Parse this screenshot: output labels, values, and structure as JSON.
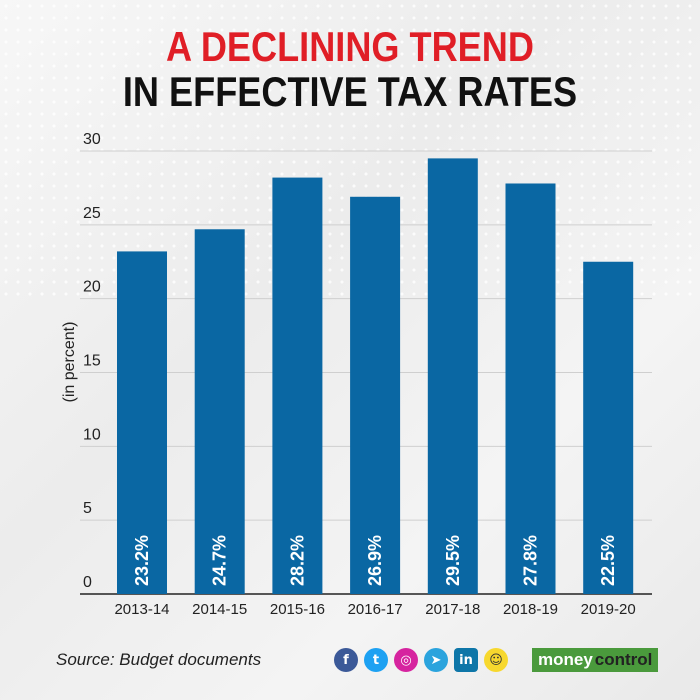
{
  "header": {
    "title_line1": "A DECLINING TREND",
    "title_line2": "IN EFFECTIVE TAX RATES"
  },
  "footer": {
    "source": "Source: Budget documents",
    "brand_part1": "money",
    "brand_part2": "control"
  },
  "colors": {
    "bar": "#0a67a3",
    "title_accent": "#e01e26",
    "grid": "#cfcfcf"
  },
  "chart_data": {
    "type": "bar",
    "title": "A DECLINING TREND IN EFFECTIVE TAX RATES",
    "xlabel": "",
    "ylabel": "(in percent)",
    "categories": [
      "2013-14",
      "2014-15",
      "2015-16",
      "2016-17",
      "2017-18",
      "2018-19",
      "2019-20"
    ],
    "values": [
      23.2,
      24.7,
      28.2,
      26.9,
      29.5,
      27.8,
      22.5
    ],
    "data_labels": [
      "23.2%",
      "24.7%",
      "28.2%",
      "26.9%",
      "29.5%",
      "27.8%",
      "22.5%"
    ],
    "yticks": [
      0,
      5,
      10,
      15,
      20,
      25,
      30
    ],
    "ylim": [
      0,
      30
    ],
    "grid": true,
    "legend": "none"
  },
  "social_icons": [
    "facebook-icon",
    "twitter-icon",
    "instagram-icon",
    "telegram-icon",
    "linkedin-icon",
    "snapchat-icon"
  ]
}
